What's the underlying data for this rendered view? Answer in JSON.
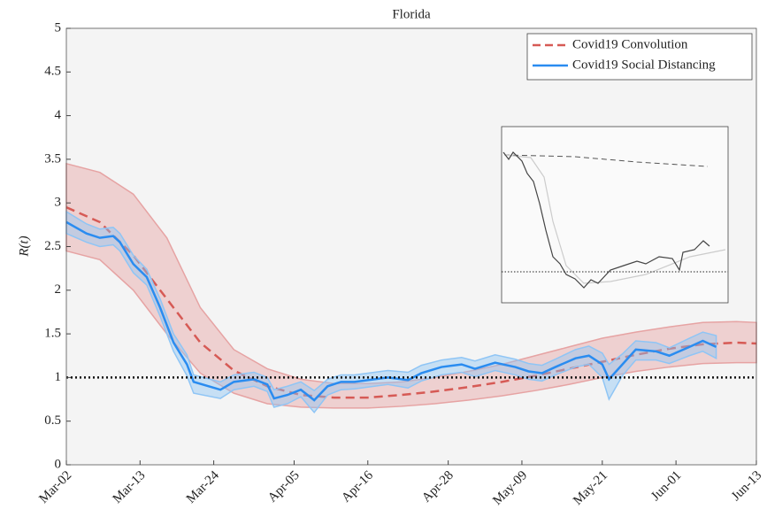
{
  "chart_data": {
    "type": "line",
    "title": "Florida",
    "ylabel": "R(t)",
    "xlim": [
      "Mar-02",
      "Jun-13"
    ],
    "xticks": [
      "Mar-02",
      "Mar-13",
      "Mar-24",
      "Apr-05",
      "Apr-16",
      "Apr-28",
      "May-09",
      "May-21",
      "Jun-01",
      "Jun-13"
    ],
    "ylim": [
      0,
      5
    ],
    "yticks": [
      0,
      0.5,
      1,
      1.5,
      2,
      2.5,
      3,
      3.5,
      4,
      4.5,
      5
    ],
    "hlines": [
      1
    ],
    "legend": "upper right",
    "series": [
      {
        "name": "Covid19 Convolution",
        "color": "#d65a55",
        "band_color": "#e6a3a3",
        "linestyle": "dashed",
        "x": [
          "Mar-02",
          "Mar-07",
          "Mar-12",
          "Mar-17",
          "Mar-22",
          "Mar-27",
          "Apr-01",
          "Apr-06",
          "Apr-11",
          "Apr-16",
          "Apr-21",
          "Apr-26",
          "May-01",
          "May-06",
          "May-11",
          "May-16",
          "May-21",
          "May-26",
          "May-31",
          "Jun-05",
          "Jun-10",
          "Jun-13"
        ],
        "values": [
          2.95,
          2.78,
          2.4,
          1.9,
          1.4,
          1.08,
          0.9,
          0.8,
          0.77,
          0.77,
          0.8,
          0.84,
          0.89,
          0.95,
          1.02,
          1.1,
          1.18,
          1.26,
          1.33,
          1.38,
          1.4,
          1.39
        ],
        "upper": [
          3.45,
          3.35,
          3.1,
          2.6,
          1.8,
          1.32,
          1.1,
          0.98,
          0.93,
          0.93,
          0.95,
          1.0,
          1.07,
          1.15,
          1.25,
          1.35,
          1.45,
          1.52,
          1.58,
          1.63,
          1.64,
          1.63
        ],
        "lower": [
          2.45,
          2.35,
          2.0,
          1.5,
          1.05,
          0.82,
          0.7,
          0.66,
          0.65,
          0.65,
          0.67,
          0.7,
          0.74,
          0.79,
          0.85,
          0.92,
          1.0,
          1.07,
          1.12,
          1.16,
          1.17,
          1.17
        ]
      },
      {
        "name": "Covid19 Social Distancing",
        "color": "#2a8cf0",
        "band_color": "#8fc5f5",
        "linestyle": "solid",
        "x": [
          "Mar-02",
          "Mar-05",
          "Mar-07",
          "Mar-09",
          "Mar-10",
          "Mar-12",
          "Mar-14",
          "Mar-16",
          "Mar-18",
          "Mar-20",
          "Mar-21",
          "Mar-25",
          "Mar-27",
          "Mar-30",
          "Apr-01",
          "Apr-02",
          "Apr-04",
          "Apr-06",
          "Apr-08",
          "Apr-10",
          "Apr-12",
          "Apr-14",
          "Apr-17",
          "Apr-19",
          "Apr-22",
          "Apr-24",
          "Apr-27",
          "Apr-30",
          "May-02",
          "May-05",
          "May-08",
          "May-10",
          "May-12",
          "May-14",
          "May-17",
          "May-19",
          "May-21",
          "May-22",
          "May-24",
          "May-26",
          "May-29",
          "May-31",
          "Jun-03",
          "Jun-05",
          "Jun-07"
        ],
        "values": [
          2.78,
          2.65,
          2.6,
          2.62,
          2.55,
          2.3,
          2.15,
          1.8,
          1.4,
          1.15,
          0.95,
          0.86,
          0.95,
          0.98,
          0.92,
          0.76,
          0.8,
          0.86,
          0.74,
          0.9,
          0.95,
          0.95,
          0.98,
          1.0,
          0.97,
          1.05,
          1.12,
          1.15,
          1.1,
          1.17,
          1.12,
          1.07,
          1.05,
          1.12,
          1.22,
          1.25,
          1.15,
          0.98,
          1.15,
          1.32,
          1.3,
          1.25,
          1.35,
          1.42,
          1.35
        ],
        "upper": [
          2.9,
          2.76,
          2.7,
          2.72,
          2.65,
          2.4,
          2.24,
          1.9,
          1.5,
          1.26,
          1.03,
          0.95,
          1.03,
          1.06,
          1.0,
          0.86,
          0.9,
          0.95,
          0.85,
          0.98,
          1.03,
          1.03,
          1.06,
          1.08,
          1.06,
          1.14,
          1.2,
          1.23,
          1.19,
          1.26,
          1.21,
          1.16,
          1.14,
          1.21,
          1.32,
          1.36,
          1.28,
          1.15,
          1.27,
          1.42,
          1.4,
          1.34,
          1.45,
          1.52,
          1.48
        ],
        "lower": [
          2.65,
          2.55,
          2.5,
          2.52,
          2.45,
          2.2,
          2.06,
          1.7,
          1.3,
          1.02,
          0.82,
          0.76,
          0.86,
          0.9,
          0.84,
          0.66,
          0.7,
          0.78,
          0.6,
          0.8,
          0.86,
          0.87,
          0.9,
          0.92,
          0.88,
          0.96,
          1.03,
          1.06,
          1.01,
          1.08,
          1.03,
          0.98,
          0.96,
          1.03,
          1.12,
          1.15,
          1.0,
          0.75,
          1.02,
          1.2,
          1.2,
          1.16,
          1.25,
          1.3,
          1.22
        ]
      }
    ]
  }
}
